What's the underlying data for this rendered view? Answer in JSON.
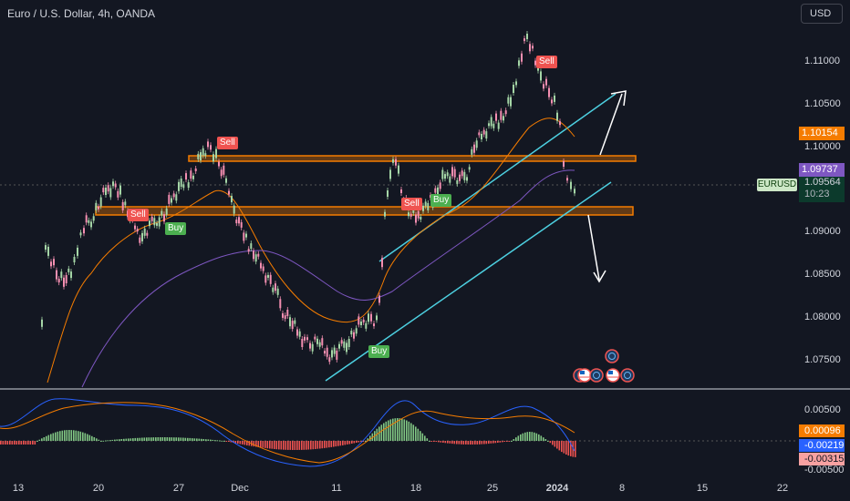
{
  "header": {
    "symbol_title": "Euro / U.S. Dollar, 4h, OANDA",
    "currency_button": "USD"
  },
  "price_axis": {
    "labels": [
      "1.11000",
      "1.10500",
      "1.10000",
      "1.09000",
      "1.08500",
      "1.08000",
      "1.07500"
    ],
    "tag_orange": "1.10154",
    "tag_purple": "1.09737",
    "symbol_label": "EURUSD",
    "current_price": "1.09564",
    "countdown": "10:23",
    "colors": {
      "orange": "#f57c00",
      "purple": "#7e57c2",
      "green": "#089981"
    }
  },
  "indicator_axis": {
    "labels": [
      "0.00500",
      "-0.00500"
    ],
    "tag_orange": "0.00096",
    "tag_blue": "-0.00219",
    "tag_red": "-0.00315"
  },
  "time_axis": {
    "labels": [
      "13",
      "20",
      "27",
      "Dec",
      "11",
      "18",
      "25",
      "2024",
      "8",
      "15",
      "22"
    ]
  },
  "signals": {
    "sell_1": "Sell",
    "sell_2": "Sell",
    "sell_3": "Sell",
    "sell_4": "Sell",
    "buy_1": "Buy",
    "buy_2": "Buy",
    "buy_3": "Buy"
  }
}
